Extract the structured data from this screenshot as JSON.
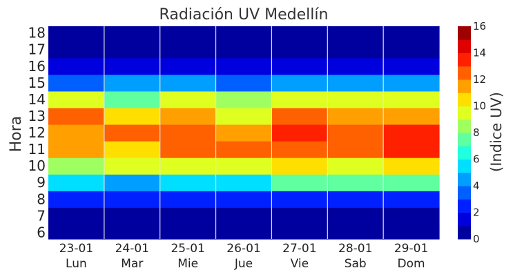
{
  "chart_data": {
    "type": "heatmap",
    "title": "Radiación UV Medellín",
    "ylabel": "Hora",
    "colorbar_label": "(Indice UV)",
    "colormap": "jet",
    "vmin": 0,
    "vmax": 16,
    "colorbar_ticks": [
      "0",
      "2",
      "4",
      "6",
      "8",
      "10",
      "12",
      "14",
      "16"
    ],
    "colorbar_levels": 16,
    "x_categories": [
      {
        "date": "23-01",
        "day": "Lun"
      },
      {
        "date": "24-01",
        "day": "Mar"
      },
      {
        "date": "25-01",
        "day": "Mie"
      },
      {
        "date": "26-01",
        "day": "Jue"
      },
      {
        "date": "27-01",
        "day": "Vie"
      },
      {
        "date": "28-01",
        "day": "Sab"
      },
      {
        "date": "29-01",
        "day": "Dom"
      }
    ],
    "hours": [
      "6",
      "7",
      "8",
      "9",
      "10",
      "11",
      "12",
      "13",
      "14",
      "15",
      "16",
      "17",
      "18"
    ],
    "ylim": [
      5.6,
      18.4
    ],
    "values": [
      [
        0,
        0,
        0,
        0,
        0,
        0,
        0
      ],
      [
        0,
        0,
        0,
        0,
        0,
        0,
        0
      ],
      [
        2,
        2,
        2,
        2,
        2,
        2,
        2
      ],
      [
        5,
        4,
        5,
        5,
        7,
        7,
        7
      ],
      [
        8,
        9,
        9,
        9,
        10,
        9,
        10
      ],
      [
        11,
        10,
        12,
        12,
        12,
        12,
        13
      ],
      [
        11,
        12,
        12,
        11,
        13,
        12,
        13
      ],
      [
        12,
        10,
        11,
        9,
        12,
        11,
        11
      ],
      [
        9,
        7,
        9,
        8,
        9,
        9,
        9
      ],
      [
        3,
        4,
        4,
        3,
        4,
        4,
        4
      ],
      [
        1,
        1,
        1,
        1,
        1,
        1,
        1
      ],
      [
        0,
        0,
        0,
        0,
        0,
        0,
        0
      ],
      [
        0,
        0,
        0,
        0,
        0,
        0,
        0
      ]
    ]
  }
}
